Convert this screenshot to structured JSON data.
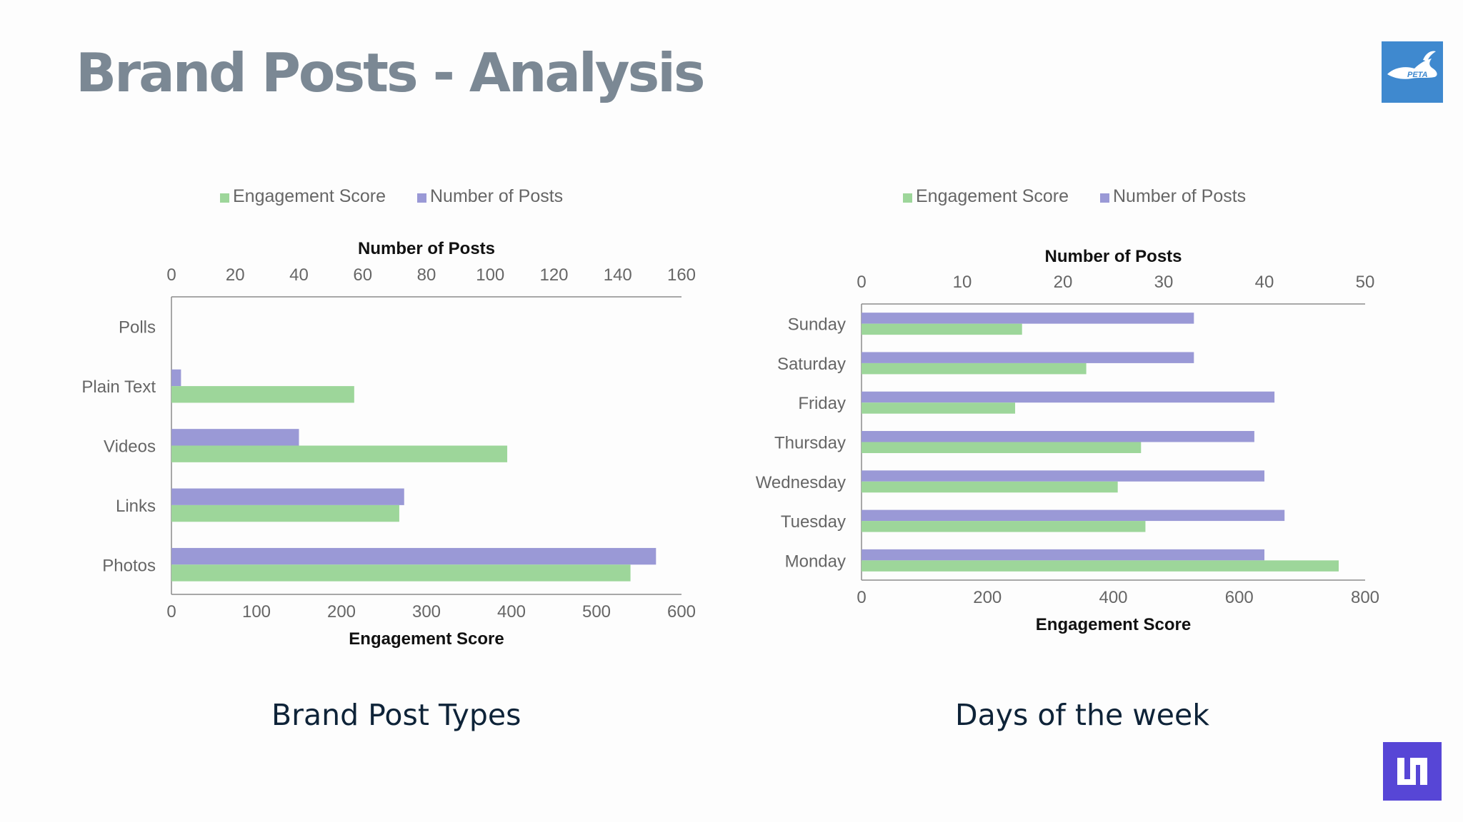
{
  "slide": {
    "title": "Brand Posts - Analysis"
  },
  "logos": {
    "top_right": {
      "text": "PETA",
      "icon": "running-rabbit-icon",
      "color": "#3f89cf"
    },
    "bottom_right": {
      "icon": "brand-mark-icon",
      "color": "#5746d6"
    }
  },
  "colors": {
    "engagement": "#9dd69a",
    "posts": "#9a99d6",
    "axis": "#8c8c8c"
  },
  "chart_data": [
    {
      "type": "bar",
      "orientation": "horizontal",
      "caption": "Brand Post Types",
      "categories": [
        "Polls",
        "Plain Text",
        "Videos",
        "Links",
        "Photos"
      ],
      "legend": [
        "Engagement Score",
        "Number of Posts"
      ],
      "legend_position": "top",
      "series": [
        {
          "name": "Engagement Score",
          "axis": "bottom",
          "values": [
            0,
            215,
            395,
            268,
            540
          ]
        },
        {
          "name": "Number of Posts",
          "axis": "top",
          "values": [
            0,
            3,
            40,
            73,
            152
          ]
        }
      ],
      "top_axis": {
        "title": "Number of Posts",
        "range": [
          0,
          160
        ],
        "ticks": [
          "0",
          "20",
          "40",
          "60",
          "80",
          "100",
          "120",
          "140",
          "160"
        ]
      },
      "bottom_axis": {
        "title": "Engagement Score",
        "range": [
          0,
          600
        ],
        "ticks": [
          "0",
          "100",
          "200",
          "300",
          "400",
          "500",
          "600"
        ]
      },
      "grid": false
    },
    {
      "type": "bar",
      "orientation": "horizontal",
      "caption": "Days of the week",
      "categories": [
        "Sunday",
        "Saturday",
        "Friday",
        "Thursday",
        "Wednesday",
        "Tuesday",
        "Monday"
      ],
      "legend": [
        "Engagement Score",
        "Number of Posts"
      ],
      "legend_position": "top",
      "series": [
        {
          "name": "Engagement Score",
          "axis": "bottom",
          "values": [
            255,
            357,
            244,
            444,
            407,
            451,
            758
          ]
        },
        {
          "name": "Number of Posts",
          "axis": "top",
          "values": [
            33,
            33,
            41,
            39,
            40,
            42,
            40
          ]
        }
      ],
      "top_axis": {
        "title": "Number of Posts",
        "range": [
          0,
          50
        ],
        "ticks": [
          "0",
          "10",
          "20",
          "30",
          "40",
          "50"
        ]
      },
      "bottom_axis": {
        "title": "Engagement Score",
        "range": [
          0,
          800
        ],
        "ticks": [
          "0",
          "200",
          "400",
          "600",
          "800"
        ]
      },
      "grid": false
    }
  ]
}
